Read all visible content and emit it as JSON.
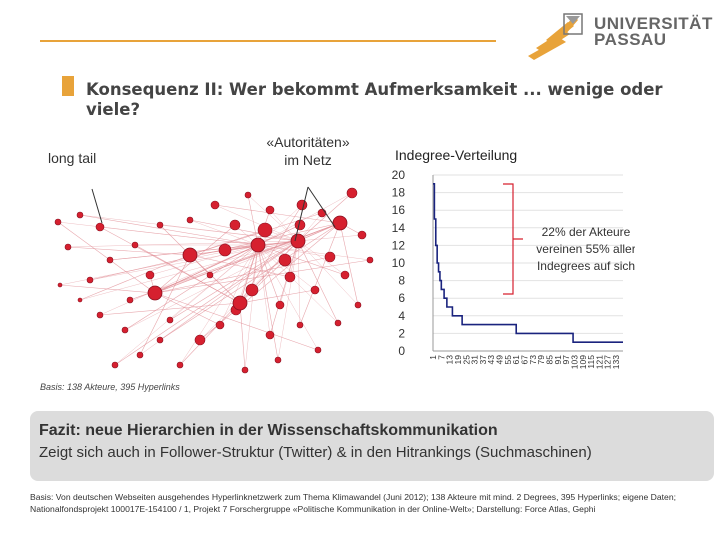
{
  "logo": {
    "line1": "UNIVERSITÄT",
    "line2": "PASSAU"
  },
  "title": "Konsequenz II: Wer bekommt Aufmerksamkeit ... wenige oder viele?",
  "labels": {
    "long_tail": "long tail",
    "autoritaeten_line1": "«Autoritäten»",
    "autoritaeten_line2": "im Netz"
  },
  "basis_note": "Basis: 138 Akteure, 395 Hyperlinks",
  "fazit": {
    "title": "Fazit: neue Hierarchien in der Wissenschaftskommunikation",
    "subtitle": "Zeigt sich auch in Follower-Struktur (Twitter) & in den Hitrankings (Suchmaschinen)"
  },
  "footnote": "Basis: Von deutschen Webseiten ausgehendes Hyperlinknetzwerk zum Thema Klimawandel (Juni 2012); 138 Akteure mit mind. 2 Degrees, 395 Hyperlinks; eigene Daten; Nationalfondsprojekt 100017E-154100 / 1, Projekt 7 Forschergruppe «Politische Kommunikation in der Online-Welt»; Darstellung: Force Atlas, Gephi",
  "colors": {
    "accent": "#e8a33a",
    "node": "#d6202f",
    "edge": "#e08b93",
    "line": "#1a237e"
  },
  "chart_data": {
    "type": "line",
    "title": "Indegree-Verteilung",
    "xlabel": "",
    "ylabel": "",
    "ylim": [
      0,
      20
    ],
    "yticks": [
      "0",
      "2",
      "4",
      "6",
      "8",
      "10",
      "12",
      "14",
      "16",
      "18",
      "20"
    ],
    "xticks": [
      "1",
      "7",
      "13",
      "19",
      "25",
      "31",
      "37",
      "43",
      "49",
      "55",
      "61",
      "67",
      "73",
      "79",
      "85",
      "91",
      "97",
      "103",
      "109",
      "115",
      "121",
      "127",
      "133"
    ],
    "annotation": [
      "22% der Akteure",
      "vereinen 55% aller",
      "Indegrees auf sich"
    ],
    "x": [
      1,
      2,
      3,
      4,
      5,
      6,
      7,
      8,
      9,
      10,
      11,
      12,
      13,
      14,
      15,
      16,
      17,
      18,
      19,
      20,
      22,
      24,
      26,
      28,
      29,
      30,
      33,
      35,
      36,
      38,
      40,
      44,
      50,
      58,
      60,
      61,
      100,
      102,
      110,
      120,
      130,
      138
    ],
    "values": [
      19,
      15,
      12,
      10,
      9,
      8,
      7,
      7,
      6,
      6,
      5,
      5,
      5,
      5,
      4,
      4,
      4,
      4,
      4,
      4,
      3,
      3,
      3,
      3,
      3,
      3,
      3,
      3,
      3,
      3,
      3,
      3,
      3,
      3,
      3,
      2,
      2,
      1,
      1,
      1,
      1,
      1
    ]
  }
}
